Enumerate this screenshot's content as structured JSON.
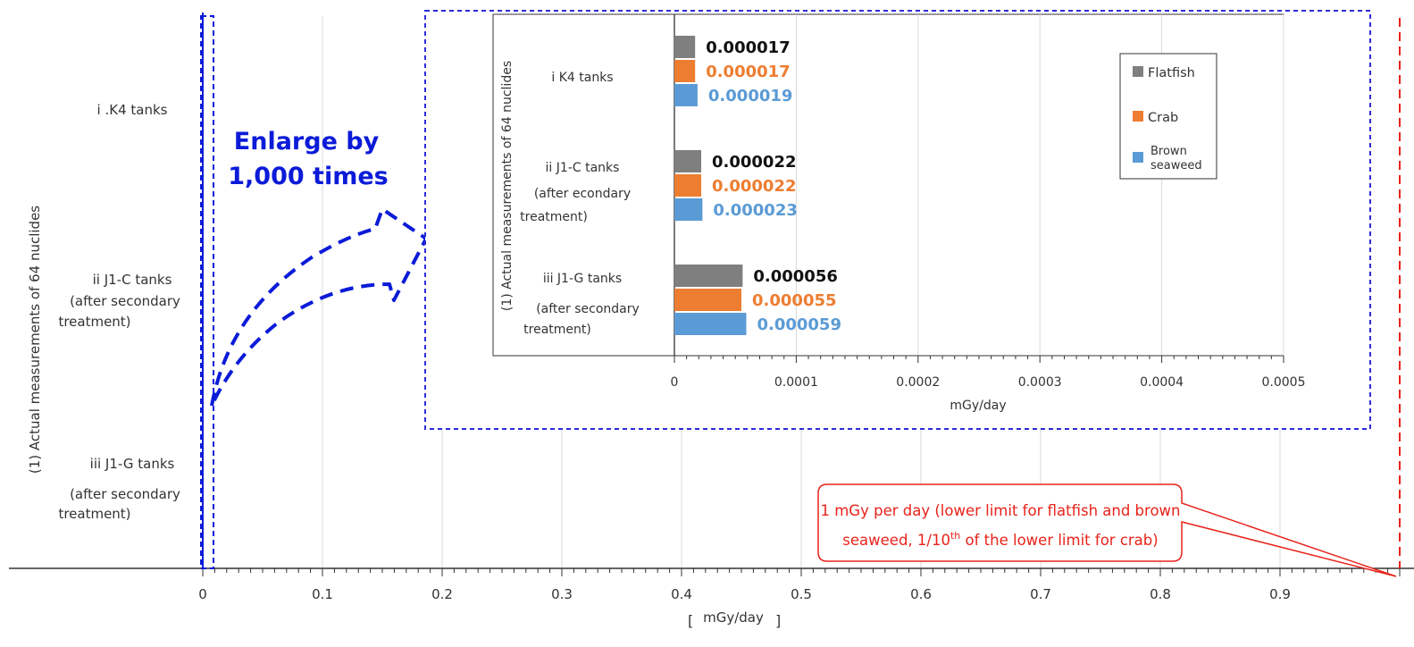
{
  "colors": {
    "flatfish": "#7f7f7f",
    "crab": "#ed7d31",
    "seaweed": "#5b9bd5",
    "annotation": "#0b1bd8",
    "limit": "#e8231b"
  },
  "chart_data": [
    {
      "type": "bar",
      "orientation": "horizontal",
      "categories": [
        "i .K4 tanks",
        "ii J1-C tanks (after secondary treatment)",
        "iii J1-G tanks (after secondary treatment)"
      ],
      "category_lines": [
        [
          "i .K4 tanks"
        ],
        [
          "ii J1-C tanks",
          "(after secondary",
          "treatment)"
        ],
        [
          "iii J1-G tanks",
          "(after secondary",
          "treatment)"
        ]
      ],
      "series": [
        {
          "name": "Flatfish",
          "values": [
            1.7e-05,
            2.2e-05,
            5.6e-05
          ]
        },
        {
          "name": "Crab",
          "values": [
            1.7e-05,
            2.2e-05,
            5.5e-05
          ]
        },
        {
          "name": "Brown seaweed",
          "values": [
            1.9e-05,
            2.3e-05,
            5.9e-05
          ]
        }
      ],
      "ylabel": "(1) Actual measurements of 64 nuclides",
      "xlabel": "mGy/day",
      "xlabel_brackets": [
        "[",
        "]"
      ],
      "xlim": [
        0,
        1
      ],
      "xticks": [
        "0",
        "0.1",
        "0.2",
        "0.3",
        "0.4",
        "0.5",
        "0.6",
        "0.7",
        "0.8",
        "0.9"
      ],
      "grid": true
    },
    {
      "type": "bar",
      "orientation": "horizontal",
      "categories": [
        "i K4 tanks",
        "ii J1-C tanks (after econdary treatment)",
        "iii J1-G tanks (after secondary treatment)"
      ],
      "category_lines": [
        [
          "i K4 tanks"
        ],
        [
          "ii J1-C tanks",
          "(after econdary",
          "treatment)"
        ],
        [
          "iii J1-G tanks",
          "(after secondary",
          "treatment)"
        ]
      ],
      "series": [
        {
          "name": "Flatfish",
          "values": [
            1.7e-05,
            2.2e-05,
            5.6e-05
          ],
          "labels": [
            "0.000017",
            "0.000022",
            "0.000056"
          ]
        },
        {
          "name": "Crab",
          "values": [
            1.7e-05,
            2.2e-05,
            5.5e-05
          ],
          "labels": [
            "0.000017",
            "0.000022",
            "0.000055"
          ]
        },
        {
          "name": "Brown seaweed",
          "values": [
            1.9e-05,
            2.3e-05,
            5.9e-05
          ],
          "labels": [
            "0.000019",
            "0.000023",
            "0.000059"
          ]
        }
      ],
      "legend": {
        "position": "top-right",
        "entries": [
          "Flatfish",
          "Crab",
          "Brown",
          "seaweed"
        ]
      },
      "ylabel": "(1) Actual measurements of 64 nuclides",
      "xlabel": "mGy/day",
      "xlim": [
        0,
        0.0005
      ],
      "xticks": [
        "0",
        "0.0001",
        "0.0002",
        "0.0003",
        "0.0004",
        "0.0005"
      ],
      "grid": true
    }
  ],
  "annotations": {
    "enlarge_line1": "Enlarge by",
    "enlarge_line2": "1,000 times",
    "limit_line1": "1 mGy per day (lower limit for flatfish and brown",
    "limit_line2_pre": "seaweed, 1/10",
    "limit_line2_sup": "th",
    "limit_line2_post": " of the lower limit for crab)"
  }
}
